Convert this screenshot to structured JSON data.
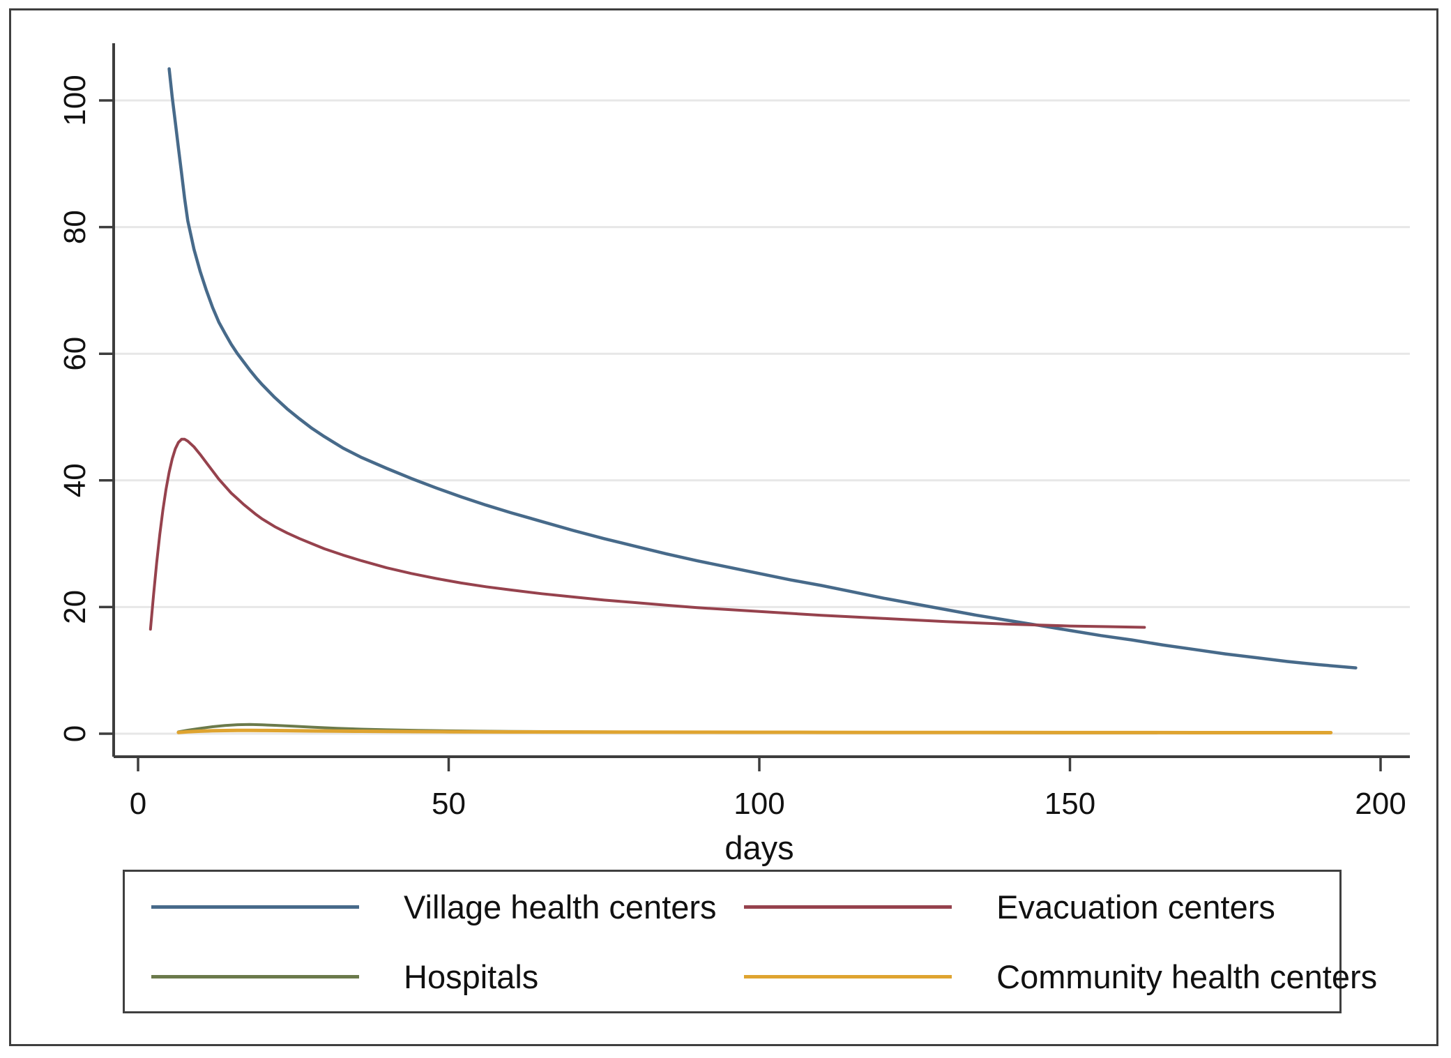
{
  "figure": {
    "colors": {
      "background": "#ffffff",
      "frame": "#3f3f3f",
      "axis": "#3d3d3d",
      "grid": "#e7e7e7",
      "text": "#111111"
    }
  },
  "chart_data": {
    "type": "line",
    "title": "",
    "xlabel": "days",
    "ylabel": "",
    "xlim": [
      0,
      200
    ],
    "ylim": [
      0,
      100
    ],
    "x_ticks": [
      0,
      50,
      100,
      150,
      200
    ],
    "y_ticks": [
      0,
      20,
      40,
      60,
      80,
      100
    ],
    "grid": "horizontal-only",
    "legend_position": "bottom",
    "series": [
      {
        "name": "Village health centers",
        "color": "#476a8a",
        "stroke_width": 4.5,
        "points": [
          [
            5,
            105
          ],
          [
            5.5,
            100.5
          ],
          [
            6,
            96.5
          ],
          [
            6.5,
            92.5
          ],
          [
            7,
            88.5
          ],
          [
            7.5,
            84.5
          ],
          [
            8,
            81
          ],
          [
            9,
            76.5
          ],
          [
            10,
            73
          ],
          [
            11,
            70
          ],
          [
            12,
            67.3
          ],
          [
            13,
            65
          ],
          [
            14,
            63.2
          ],
          [
            15,
            61.5
          ],
          [
            16,
            60
          ],
          [
            17,
            58.7
          ],
          [
            18,
            57.4
          ],
          [
            19,
            56.2
          ],
          [
            20,
            55.1
          ],
          [
            22,
            53.1
          ],
          [
            24,
            51.3
          ],
          [
            26,
            49.7
          ],
          [
            28,
            48.2
          ],
          [
            30,
            46.9
          ],
          [
            33,
            45.1
          ],
          [
            36,
            43.6
          ],
          [
            40,
            41.9
          ],
          [
            44,
            40.3
          ],
          [
            48,
            38.8
          ],
          [
            52,
            37.4
          ],
          [
            56,
            36.1
          ],
          [
            60,
            34.9
          ],
          [
            65,
            33.5
          ],
          [
            70,
            32.1
          ],
          [
            75,
            30.8
          ],
          [
            80,
            29.6
          ],
          [
            85,
            28.4
          ],
          [
            90,
            27.3
          ],
          [
            95,
            26.3
          ],
          [
            100,
            25.3
          ],
          [
            105,
            24.3
          ],
          [
            110,
            23.4
          ],
          [
            115,
            22.4
          ],
          [
            120,
            21.4
          ],
          [
            125,
            20.5
          ],
          [
            130,
            19.6
          ],
          [
            135,
            18.7
          ],
          [
            140,
            17.9
          ],
          [
            145,
            17.1
          ],
          [
            150,
            16.3
          ],
          [
            155,
            15.5
          ],
          [
            160,
            14.8
          ],
          [
            165,
            14
          ],
          [
            170,
            13.3
          ],
          [
            175,
            12.6
          ],
          [
            180,
            12
          ],
          [
            185,
            11.4
          ],
          [
            190,
            10.9
          ],
          [
            196,
            10.4
          ]
        ]
      },
      {
        "name": "Evacuation centers",
        "color": "#96424d",
        "stroke_width": 4,
        "points": [
          [
            2,
            16.5
          ],
          [
            2.5,
            22
          ],
          [
            3,
            27
          ],
          [
            3.5,
            31.5
          ],
          [
            4,
            35.3
          ],
          [
            4.5,
            38.6
          ],
          [
            5,
            41.3
          ],
          [
            5.5,
            43.4
          ],
          [
            6,
            45
          ],
          [
            6.5,
            46
          ],
          [
            7,
            46.5
          ],
          [
            7.5,
            46.5
          ],
          [
            8,
            46.2
          ],
          [
            9,
            45.3
          ],
          [
            10,
            44.1
          ],
          [
            11,
            42.8
          ],
          [
            12,
            41.5
          ],
          [
            13,
            40.2
          ],
          [
            14,
            39.1
          ],
          [
            15,
            38
          ],
          [
            16,
            37.1
          ],
          [
            17,
            36.2
          ],
          [
            18,
            35.4
          ],
          [
            19,
            34.6
          ],
          [
            20,
            33.9
          ],
          [
            22,
            32.7
          ],
          [
            24,
            31.7
          ],
          [
            26,
            30.8
          ],
          [
            28,
            30
          ],
          [
            30,
            29.2
          ],
          [
            33,
            28.2
          ],
          [
            36,
            27.3
          ],
          [
            40,
            26.2
          ],
          [
            44,
            25.3
          ],
          [
            48,
            24.5
          ],
          [
            52,
            23.8
          ],
          [
            56,
            23.2
          ],
          [
            60,
            22.7
          ],
          [
            65,
            22.1
          ],
          [
            70,
            21.6
          ],
          [
            75,
            21.1
          ],
          [
            80,
            20.7
          ],
          [
            85,
            20.3
          ],
          [
            90,
            19.9
          ],
          [
            95,
            19.6
          ],
          [
            100,
            19.3
          ],
          [
            110,
            18.7
          ],
          [
            120,
            18.2
          ],
          [
            130,
            17.7
          ],
          [
            140,
            17.3
          ],
          [
            150,
            17
          ],
          [
            156,
            16.9
          ],
          [
            162,
            16.8
          ]
        ]
      },
      {
        "name": "Hospitals",
        "color": "#6b7a4b",
        "stroke_width": 4,
        "points": [
          [
            6.5,
            0.3
          ],
          [
            8,
            0.55
          ],
          [
            10,
            0.85
          ],
          [
            12,
            1.1
          ],
          [
            14,
            1.3
          ],
          [
            16,
            1.42
          ],
          [
            18,
            1.45
          ],
          [
            20,
            1.4
          ],
          [
            22,
            1.32
          ],
          [
            25,
            1.18
          ],
          [
            28,
            1.03
          ],
          [
            32,
            0.86
          ],
          [
            36,
            0.72
          ],
          [
            40,
            0.62
          ],
          [
            45,
            0.52
          ],
          [
            50,
            0.45
          ],
          [
            55,
            0.4
          ],
          [
            60,
            0.36
          ],
          [
            70,
            0.3
          ],
          [
            80,
            0.26
          ],
          [
            90,
            0.22
          ],
          [
            100,
            0.2
          ],
          [
            110,
            0.18
          ],
          [
            120,
            0.17
          ],
          [
            130,
            0.16
          ],
          [
            140,
            0.15
          ],
          [
            150,
            0.14
          ],
          [
            164,
            0.13
          ]
        ]
      },
      {
        "name": "Community health centers",
        "color": "#dfa430",
        "stroke_width": 5,
        "points": [
          [
            6.5,
            0.2
          ],
          [
            8,
            0.3
          ],
          [
            10,
            0.4
          ],
          [
            12,
            0.46
          ],
          [
            14,
            0.5
          ],
          [
            16,
            0.52
          ],
          [
            18,
            0.52
          ],
          [
            20,
            0.51
          ],
          [
            24,
            0.48
          ],
          [
            28,
            0.44
          ],
          [
            32,
            0.41
          ],
          [
            36,
            0.38
          ],
          [
            40,
            0.36
          ],
          [
            45,
            0.33
          ],
          [
            50,
            0.31
          ],
          [
            60,
            0.28
          ],
          [
            70,
            0.26
          ],
          [
            80,
            0.24
          ],
          [
            90,
            0.23
          ],
          [
            100,
            0.22
          ],
          [
            110,
            0.21
          ],
          [
            120,
            0.2
          ],
          [
            130,
            0.19
          ],
          [
            140,
            0.19
          ],
          [
            150,
            0.18
          ],
          [
            160,
            0.18
          ],
          [
            170,
            0.17
          ],
          [
            180,
            0.17
          ],
          [
            192,
            0.17
          ]
        ]
      }
    ]
  }
}
